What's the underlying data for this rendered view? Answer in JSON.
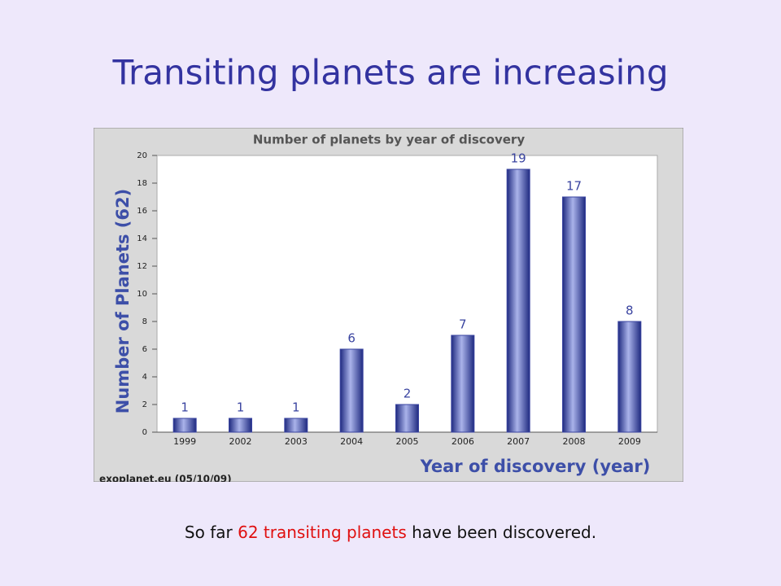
{
  "slide_title": "Transiting planets are increasing",
  "chart_data": {
    "type": "bar",
    "title": "Number of planets by year of discovery",
    "categories": [
      "1999",
      "2002",
      "2003",
      "2004",
      "2005",
      "2006",
      "2007",
      "2008",
      "2009"
    ],
    "values": [
      1,
      1,
      1,
      6,
      2,
      7,
      19,
      17,
      8
    ],
    "color": "#3a44a0",
    "ylim": [
      0,
      20
    ],
    "yticks": [
      0,
      2,
      4,
      6,
      8,
      10,
      12,
      14,
      16,
      18,
      20
    ],
    "x_label": "Year of discovery (year)",
    "y_label": "Number of Planets (62)",
    "source": "exoplanet.eu (05/10/09)",
    "grid": false
  },
  "footer": {
    "before": "So far ",
    "highlight": "62 transiting planets",
    "after": " have been discovered."
  }
}
